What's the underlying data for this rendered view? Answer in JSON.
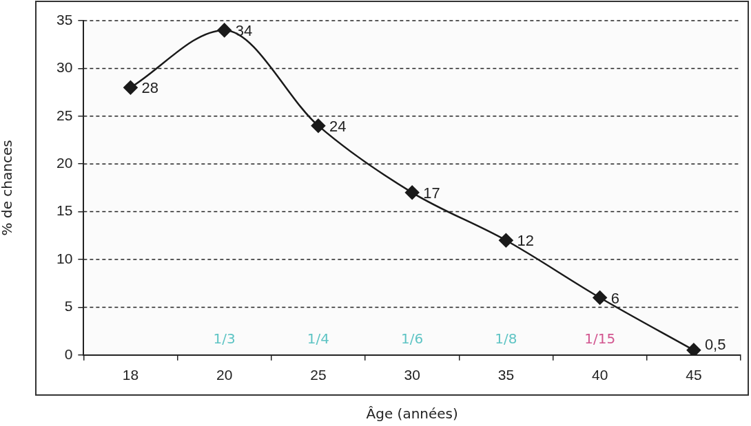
{
  "chart_data": {
    "type": "line",
    "xlabel": "Âge (années)",
    "ylabel": "% de chances",
    "categories": [
      "18",
      "20",
      "25",
      "30",
      "35",
      "40",
      "45"
    ],
    "series": [
      {
        "color": "#1a1a1a",
        "values": [
          28,
          34,
          24,
          17,
          12,
          6,
          0.5
        ],
        "value_labels": [
          "28",
          "34",
          "24",
          "17",
          "12",
          "6",
          "0,5"
        ]
      }
    ],
    "ylim": [
      0,
      35
    ],
    "yticks": [
      0,
      5,
      10,
      15,
      20,
      25,
      30,
      35
    ],
    "grid": "y",
    "legend": false,
    "marker": "diamond",
    "line_style": "solid",
    "annotations": [
      "1/3",
      "1/4",
      "1/6",
      "1/8",
      "1/15"
    ]
  }
}
